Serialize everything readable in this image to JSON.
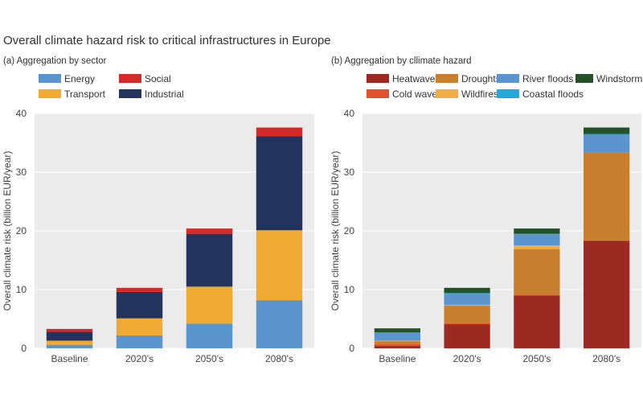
{
  "title": "Overall climate hazard risk to critical infrastructures in Europe",
  "chart_data": [
    {
      "type": "bar",
      "stacked": true,
      "title": "(a) Aggregation by  sector",
      "xlabel": "",
      "ylabel": "Overall climate risk (billion EUR/year)",
      "ylim": [
        0,
        40
      ],
      "yticks": [
        0,
        10,
        20,
        30,
        40
      ],
      "categories": [
        "Baseline",
        "2020's",
        "2050's",
        "2080's"
      ],
      "series": [
        {
          "name": "Energy",
          "color": "#5b95cf",
          "values": [
            0.6,
            2.2,
            4.2,
            8.2
          ]
        },
        {
          "name": "Transport",
          "color": "#efaa33",
          "values": [
            0.7,
            2.9,
            6.3,
            11.9
          ]
        },
        {
          "name": "Industrial",
          "color": "#22335e",
          "values": [
            1.5,
            4.5,
            9.0,
            16.0
          ]
        },
        {
          "name": "Social",
          "color": "#d42a2a",
          "values": [
            0.5,
            0.7,
            0.9,
            1.5
          ]
        }
      ],
      "legend": [
        {
          "name": "Energy",
          "color": "#5b95cf"
        },
        {
          "name": "Social",
          "color": "#d42a2a"
        },
        {
          "name": "Transport",
          "color": "#efaa33"
        },
        {
          "name": "Industrial",
          "color": "#22335e"
        }
      ]
    },
    {
      "type": "bar",
      "stacked": true,
      "title": "(b) Aggregation by cllimate hazard",
      "xlabel": "",
      "ylabel": "Overall climate risk (billion EUR/year)",
      "ylim": [
        0,
        40
      ],
      "yticks": [
        0,
        10,
        20,
        30,
        40
      ],
      "categories": [
        "Baseline",
        "2020's",
        "2050's",
        "2080's"
      ],
      "series": [
        {
          "name": "Heatwaves",
          "color": "#9c2a22",
          "values": [
            0.4,
            4.1,
            9.0,
            18.3
          ]
        },
        {
          "name": "Cold waves",
          "color": "#e0532e",
          "values": [
            0.3,
            0.2,
            0.1,
            0.1
          ]
        },
        {
          "name": "Droughts",
          "color": "#c87f2e",
          "values": [
            0.5,
            3.0,
            7.8,
            15.0
          ]
        },
        {
          "name": "Wildfires",
          "color": "#f0ad4a",
          "values": [
            0.1,
            0.1,
            0.6,
            0.0
          ]
        },
        {
          "name": "River floods",
          "color": "#5b95cf",
          "values": [
            1.3,
            1.9,
            1.9,
            2.9
          ]
        },
        {
          "name": "Coastal floods",
          "color": "#25a8d8",
          "values": [
            0.1,
            0.1,
            0.1,
            0.2
          ]
        },
        {
          "name": "Windstorms",
          "color": "#24502a",
          "values": [
            0.7,
            0.9,
            0.9,
            1.1
          ]
        }
      ],
      "legend": [
        {
          "name": "Heatwaves",
          "color": "#9c2a22"
        },
        {
          "name": "Droughts",
          "color": "#c87f2e"
        },
        {
          "name": "River floods",
          "color": "#5b95cf"
        },
        {
          "name": "Windstorms",
          "color": "#24502a"
        },
        {
          "name": "Cold waves",
          "color": "#e0532e"
        },
        {
          "name": "Wildfires",
          "color": "#f0ad4a"
        },
        {
          "name": "Coastal floods",
          "color": "#25a8d8"
        }
      ]
    }
  ]
}
